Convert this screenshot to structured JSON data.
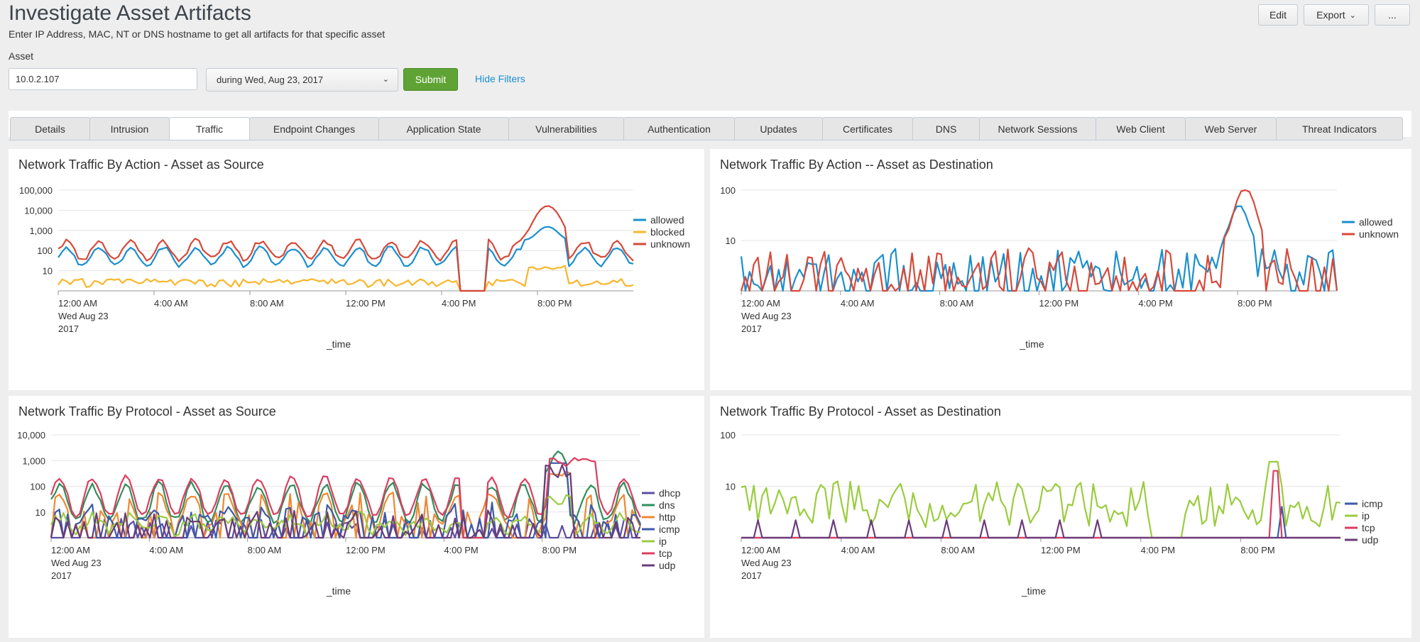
{
  "header": {
    "title": "Investigate Asset Artifacts",
    "subtitle": "Enter IP Address, MAC, NT or DNS hostname to get all artifacts for that specific asset"
  },
  "actions": {
    "edit": "Edit",
    "export": "Export",
    "more": "..."
  },
  "filters": {
    "asset_label": "Asset",
    "asset_value": "10.0.2.107",
    "time_value": "during Wed, Aug 23, 2017",
    "submit": "Submit",
    "hide_filters": "Hide Filters"
  },
  "tabs": [
    {
      "label": "Details",
      "active": false
    },
    {
      "label": "Intrusion",
      "active": false
    },
    {
      "label": "Traffic",
      "active": true
    },
    {
      "label": "Endpoint Changes",
      "active": false
    },
    {
      "label": "Application State",
      "active": false
    },
    {
      "label": "Vulnerabilities",
      "active": false
    },
    {
      "label": "Authentication",
      "active": false
    },
    {
      "label": "Updates",
      "active": false
    },
    {
      "label": "Certificates",
      "active": false
    },
    {
      "label": "DNS",
      "active": false
    },
    {
      "label": "Network Sessions",
      "active": false
    },
    {
      "label": "Web Client",
      "active": false
    },
    {
      "label": "Web Server",
      "active": false
    },
    {
      "label": "Threat Indicators",
      "active": false
    }
  ],
  "colors": {
    "allowed": "#1a8fce",
    "blocked": "#f8b62b",
    "unknown": "#d6493a",
    "dhcp": "#5a4fa3",
    "dns": "#2f8f5c",
    "http": "#ef8732",
    "icmp": "#3d5aa8",
    "ip": "#9acc3f",
    "tcp": "#dc3e5f",
    "udp": "#6b3b7a"
  },
  "chart_data": [
    {
      "title": "Network Traffic By Action - Asset as Source",
      "type": "line",
      "y_scale": "log",
      "ylim": [
        1,
        100000
      ],
      "y_ticks": [
        "100,000",
        "10,000",
        "1,000",
        "100",
        "10"
      ],
      "x_ticks": [
        "12:00 AM",
        "4:00 AM",
        "8:00 AM",
        "12:00 PM",
        "4:00 PM",
        "8:00 PM"
      ],
      "x_first_tick_extra": [
        "Wed Aug 23",
        "2017"
      ],
      "xlabel": "_time",
      "legend": "right",
      "series": [
        {
          "name": "allowed",
          "color_key": "allowed",
          "gen": "src_allowed"
        },
        {
          "name": "blocked",
          "color_key": "blocked",
          "gen": "src_blocked"
        },
        {
          "name": "unknown",
          "color_key": "unknown",
          "gen": "src_unknown"
        }
      ]
    },
    {
      "title": "Network Traffic By Action -- Asset as Destination",
      "type": "line",
      "y_scale": "log",
      "ylim": [
        1,
        100
      ],
      "y_ticks": [
        "100",
        "10"
      ],
      "x_ticks": [
        "12:00 AM",
        "4:00 AM",
        "8:00 AM",
        "12:00 PM",
        "4:00 PM",
        "8:00 PM"
      ],
      "x_first_tick_extra": [
        "Wed Aug 23",
        "2017"
      ],
      "xlabel": "_time",
      "legend": "right",
      "series": [
        {
          "name": "allowed",
          "color_key": "allowed",
          "gen": "dst_allowed"
        },
        {
          "name": "unknown",
          "color_key": "unknown",
          "gen": "dst_unknown"
        }
      ]
    },
    {
      "title": "Network Traffic By Protocol - Asset as Source",
      "type": "line",
      "y_scale": "log",
      "ylim": [
        1,
        10000
      ],
      "y_ticks": [
        "10,000",
        "1,000",
        "100",
        "10"
      ],
      "x_ticks": [
        "12:00 AM",
        "4:00 AM",
        "8:00 AM",
        "12:00 PM",
        "4:00 PM",
        "8:00 PM"
      ],
      "x_first_tick_extra": [
        "Wed Aug 23",
        "2017"
      ],
      "xlabel": "_time",
      "legend": "right",
      "series": [
        {
          "name": "dhcp",
          "color_key": "dhcp",
          "gen": "p_dhcp"
        },
        {
          "name": "dns",
          "color_key": "dns",
          "gen": "p_dns"
        },
        {
          "name": "http",
          "color_key": "http",
          "gen": "p_http"
        },
        {
          "name": "icmp",
          "color_key": "icmp",
          "gen": "p_icmp"
        },
        {
          "name": "ip",
          "color_key": "ip",
          "gen": "p_ip"
        },
        {
          "name": "tcp",
          "color_key": "tcp",
          "gen": "p_tcp"
        },
        {
          "name": "udp",
          "color_key": "udp",
          "gen": "p_udp"
        }
      ]
    },
    {
      "title": "Network Traffic By Protocol - Asset as Destination",
      "type": "line",
      "y_scale": "log",
      "ylim": [
        1,
        100
      ],
      "y_ticks": [
        "100",
        "10"
      ],
      "x_ticks": [
        "12:00 AM",
        "4:00 AM",
        "8:00 AM",
        "12:00 PM",
        "4:00 PM",
        "8:00 PM"
      ],
      "x_first_tick_extra": [
        "Wed Aug 23",
        "2017"
      ],
      "xlabel": "_time",
      "legend": "right",
      "series": [
        {
          "name": "icmp",
          "color_key": "icmp",
          "gen": "d_icmp"
        },
        {
          "name": "ip",
          "color_key": "ip",
          "gen": "d_ip"
        },
        {
          "name": "tcp",
          "color_key": "tcp",
          "gen": "d_tcp"
        },
        {
          "name": "udp",
          "color_key": "udp",
          "gen": "d_udp"
        }
      ]
    }
  ]
}
